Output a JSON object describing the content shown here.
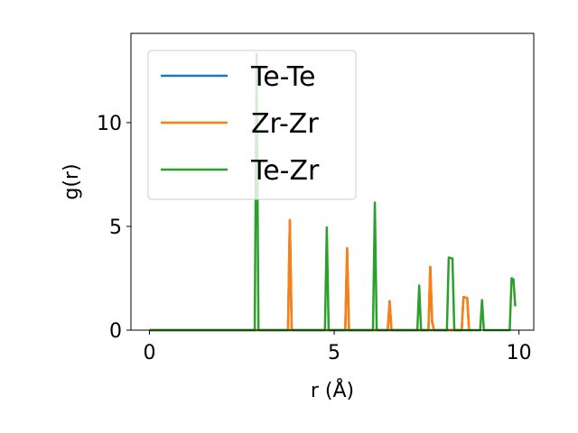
{
  "chart_data": {
    "type": "line",
    "xlabel": "r (Å)",
    "ylabel": "g(r)",
    "xlim": [
      -0.5,
      10.4
    ],
    "ylim": [
      0,
      14.3
    ],
    "xticks": [
      0,
      5,
      10
    ],
    "yticks": [
      0,
      5,
      10
    ],
    "grid": false,
    "legend_position": "top-left",
    "series": [
      {
        "name": "Te-Te",
        "color": "#1f77b4",
        "x": [
          0,
          3.7,
          3.75,
          3.8,
          3.85,
          3.9,
          3.95,
          5.2,
          5.3,
          5.35,
          5.4,
          5.45,
          6.4,
          6.45,
          6.5,
          6.55,
          6.6,
          7.5,
          7.55,
          7.6,
          7.65,
          7.7,
          8.4,
          8.45,
          8.5,
          8.6,
          8.65,
          8.7
        ],
        "y": [
          0,
          0,
          0,
          5.3,
          0,
          0,
          0,
          0,
          0,
          3.95,
          0,
          0,
          0,
          0,
          1.4,
          0,
          0,
          0,
          0,
          3.05,
          0.4,
          0,
          0,
          0,
          1.6,
          1.55,
          0,
          0
        ]
      },
      {
        "name": "Zr-Zr",
        "color": "#ff7f0e",
        "x": [
          0,
          3.7,
          3.75,
          3.8,
          3.85,
          3.9,
          3.95,
          5.2,
          5.3,
          5.35,
          5.4,
          5.45,
          6.4,
          6.45,
          6.5,
          6.55,
          6.6,
          7.5,
          7.55,
          7.6,
          7.65,
          7.7,
          8.4,
          8.45,
          8.5,
          8.6,
          8.65,
          8.7
        ],
        "y": [
          0,
          0,
          0,
          5.3,
          0,
          0,
          0,
          0,
          0,
          3.95,
          0,
          0,
          0,
          0,
          1.4,
          0,
          0,
          0,
          0,
          3.05,
          0.4,
          0,
          0,
          0,
          1.6,
          1.55,
          0,
          0
        ]
      },
      {
        "name": "Te-Zr",
        "color": "#2ca02c",
        "x": [
          0,
          2.8,
          2.85,
          2.9,
          2.95,
          3.0,
          4.7,
          4.75,
          4.8,
          4.85,
          4.9,
          6.0,
          6.05,
          6.1,
          6.15,
          6.2,
          7.2,
          7.25,
          7.3,
          7.35,
          7.4,
          8.0,
          8.05,
          8.1,
          8.2,
          8.25,
          8.3,
          8.9,
          8.95,
          9.0,
          9.05,
          9.1,
          9.7,
          9.75,
          9.8,
          9.85,
          9.9
        ],
        "y": [
          0,
          0,
          0,
          13.3,
          0,
          0,
          0,
          0,
          4.95,
          0,
          0,
          0,
          0,
          6.15,
          0,
          0,
          0,
          0,
          2.15,
          0,
          0,
          0,
          0,
          3.5,
          3.45,
          0,
          0,
          0,
          0,
          1.45,
          0,
          0,
          0,
          0,
          2.5,
          2.45,
          1.15
        ]
      }
    ]
  }
}
